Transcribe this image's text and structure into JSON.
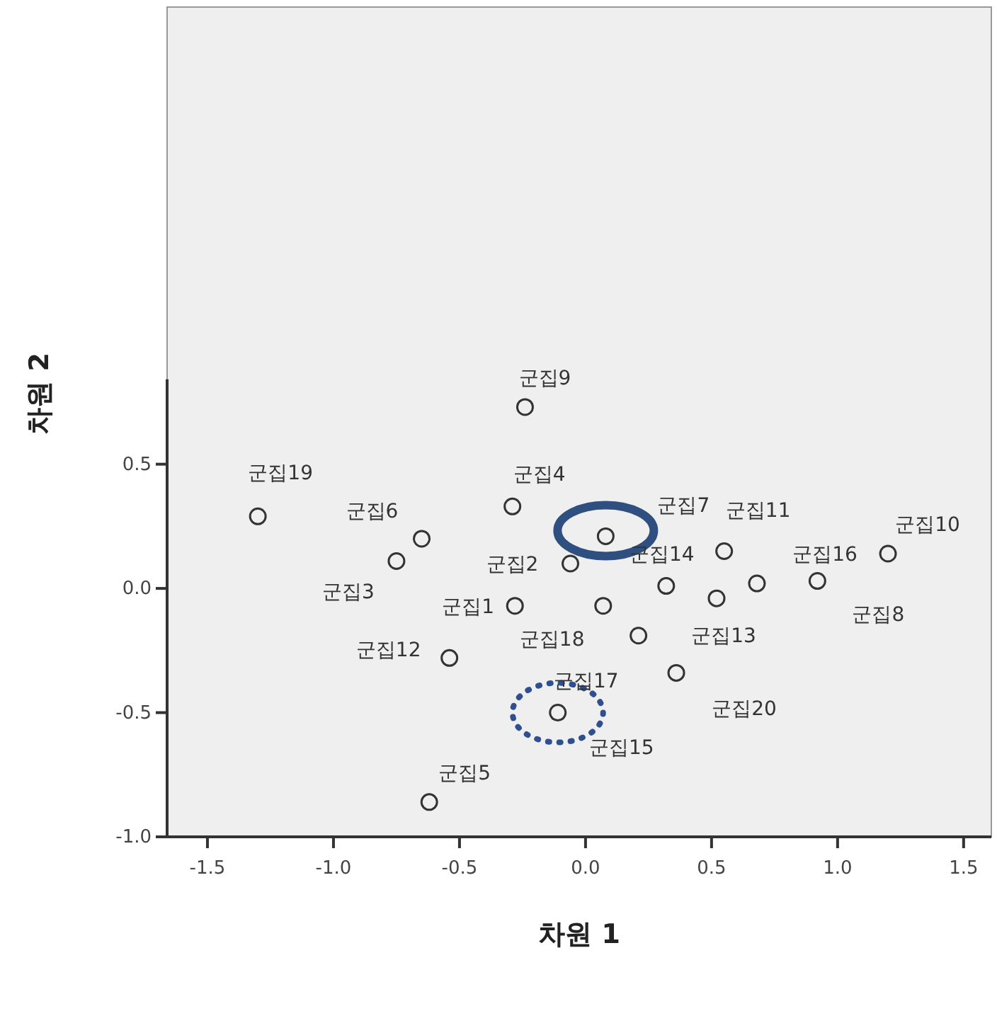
{
  "chart_data": {
    "type": "scatter",
    "xlabel": "차원 1",
    "ylabel": "차원 2",
    "marker": "circle",
    "grid": false,
    "xlim": [
      -1.66,
      1.61
    ],
    "ylim": [
      -1.0,
      2.34
    ],
    "xticks": [
      {
        "value": -1.5,
        "label": "-1.5"
      },
      {
        "value": -1,
        "label": "-1.0"
      },
      {
        "value": -0.5,
        "label": "-0.5"
      },
      {
        "value": 0,
        "label": "0.0"
      },
      {
        "value": 0.5,
        "label": "0.5"
      },
      {
        "value": 1,
        "label": "1.0"
      },
      {
        "value": 1.5,
        "label": "1.5"
      }
    ],
    "yticks": [
      {
        "value": -1,
        "label": "-1.0"
      },
      {
        "value": -0.5,
        "label": "-0.5"
      },
      {
        "value": 0,
        "label": "0.0"
      },
      {
        "value": 0.5,
        "label": "0.5"
      }
    ],
    "series": [
      {
        "color": "#333333",
        "x": [
          -0.28,
          -0.06,
          -0.75,
          -0.29,
          -0.62,
          -0.65,
          0.08,
          0.92,
          -0.24,
          1.2,
          0.55,
          -0.54,
          0.52,
          0.32,
          -0.11,
          0.68,
          0.07,
          0.21,
          -1.3,
          0.36
        ],
        "values": [
          -0.07,
          0.1,
          0.11,
          0.33,
          -0.86,
          0.2,
          0.21,
          0.03,
          0.73,
          0.14,
          0.15,
          -0.28,
          -0.04,
          0.01,
          -0.5,
          0.02,
          -0.07,
          -0.19,
          0.29,
          -0.34
        ]
      }
    ],
    "annotations": [
      {
        "text": "군집1",
        "x": -0.28,
        "y": -0.07
      },
      {
        "text": "군집2",
        "x": -0.06,
        "y": 0.1
      },
      {
        "text": "군집3",
        "x": -0.75,
        "y": 0.11
      },
      {
        "text": "군집4",
        "x": -0.29,
        "y": 0.33
      },
      {
        "text": "군집5",
        "x": -0.62,
        "y": -0.86
      },
      {
        "text": "군집6",
        "x": -0.65,
        "y": 0.2
      },
      {
        "text": "군집7",
        "x": 0.08,
        "y": 0.21
      },
      {
        "text": "군집8",
        "x": 0.92,
        "y": 0.03
      },
      {
        "text": "군집9",
        "x": -0.24,
        "y": 0.73
      },
      {
        "text": "군집10",
        "x": 1.2,
        "y": 0.14
      },
      {
        "text": "군집11",
        "x": 0.55,
        "y": 0.15
      },
      {
        "text": "군집12",
        "x": -0.54,
        "y": -0.28
      },
      {
        "text": "군집13",
        "x": 0.52,
        "y": -0.04
      },
      {
        "text": "군집14",
        "x": 0.32,
        "y": 0.01
      },
      {
        "text": "군집15",
        "x": -0.11,
        "y": -0.5
      },
      {
        "text": "군집16",
        "x": 0.68,
        "y": 0.02
      },
      {
        "text": "군집17",
        "x": -0.11,
        "y": -0.5
      },
      {
        "text": "군집18",
        "x": 0.21,
        "y": -0.19
      },
      {
        "text": "군집19",
        "x": -1.3,
        "y": 0.29
      },
      {
        "text": "군집20",
        "x": 0.36,
        "y": -0.34
      }
    ]
  }
}
